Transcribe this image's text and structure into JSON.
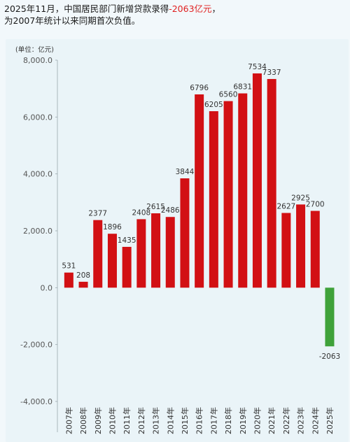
{
  "title": {
    "line1_prefix": "2025年11月，中国居民部门新增贷款录得",
    "line1_highlight": "-2063亿元",
    "line1_suffix": "，",
    "line2": "为2007年统计以来同期首次负值。"
  },
  "colors": {
    "positive": "#d21014",
    "negative": "#3fa23a",
    "highlight_text": "#e02020"
  },
  "chart_data": {
    "type": "bar",
    "unit_label": "(单位：亿元)",
    "categories": [
      "2007年",
      "2008年",
      "2009年",
      "2010年",
      "2011年",
      "2012年",
      "2013年",
      "2014年",
      "2015年",
      "2016年",
      "2017年",
      "2018年",
      "2019年",
      "2020年",
      "2021年",
      "2022年",
      "2023年",
      "2024年",
      "2025年"
    ],
    "values": [
      531,
      208,
      2377,
      1896,
      1435,
      2408,
      2615,
      2486,
      3844,
      6796,
      6205,
      6560,
      6831,
      7534,
      7337,
      2627,
      2925,
      2700,
      -2063
    ],
    "data_labels": [
      "531",
      "208",
      "2377",
      "1896",
      "1435",
      "2408",
      "2615",
      "2486",
      "3844",
      "6796",
      "6205",
      "6560",
      "6831",
      "7534",
      "7337",
      "2627",
      "2925",
      "2700",
      "-2063"
    ],
    "ylim": [
      -4000,
      8000
    ],
    "yticks": [
      -4000,
      -2000,
      0,
      2000,
      4000,
      6000,
      8000
    ],
    "ytick_labels": [
      "-4,000.0",
      "-2,000.0",
      "0.0",
      "2,000.0",
      "4,000.0",
      "6,000.0",
      "8,000.0"
    ],
    "grid": false,
    "legend": "none"
  }
}
